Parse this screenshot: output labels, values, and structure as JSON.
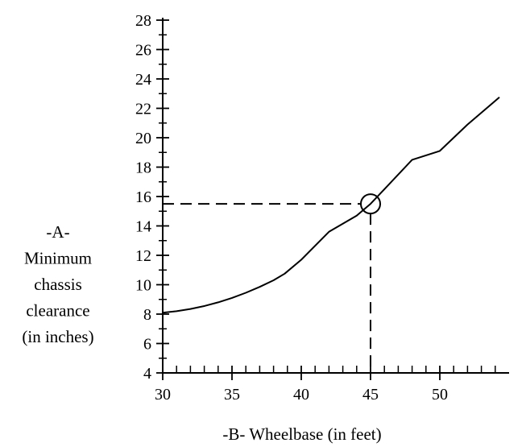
{
  "chart_data": {
    "type": "line",
    "xlabel": "-B- Wheelbase (in feet)",
    "ylabel": [
      "-A-",
      "Minimum",
      "chassis",
      "clearance",
      "(in inches)"
    ],
    "xlim": [
      30,
      55
    ],
    "ylim": [
      4,
      28
    ],
    "x_ticks": [
      30,
      35,
      40,
      45,
      50
    ],
    "x_tick_labels": [
      "30",
      "35",
      "40",
      "45",
      "50"
    ],
    "y_ticks": [
      4,
      6,
      8,
      10,
      12,
      14,
      16,
      18,
      20,
      22,
      24,
      26,
      28
    ],
    "y_tick_labels": [
      "4",
      "6",
      "8",
      "10",
      "12",
      "14",
      "16",
      "18",
      "20",
      "22",
      "24",
      "26",
      "28"
    ],
    "x_minor_step": 1,
    "y_minor_step": 1,
    "grid": false,
    "series": [
      {
        "x": [
          30,
          31,
          32,
          33,
          34,
          35,
          36,
          37,
          38,
          38.8,
          40,
          42,
          44,
          45,
          46,
          48,
          50,
          52,
          54.3
        ],
        "y": [
          8.1,
          8.2,
          8.35,
          8.55,
          8.8,
          9.1,
          9.45,
          9.85,
          10.3,
          10.75,
          11.7,
          13.6,
          14.7,
          15.5,
          16.5,
          18.5,
          19.1,
          20.9,
          22.75
        ]
      }
    ],
    "annotation": {
      "point": {
        "x": 45,
        "y": 15.5
      },
      "marker": "circle",
      "guides": "dashed"
    },
    "colors": {
      "line": "#000000",
      "background": "#ffffff"
    }
  }
}
